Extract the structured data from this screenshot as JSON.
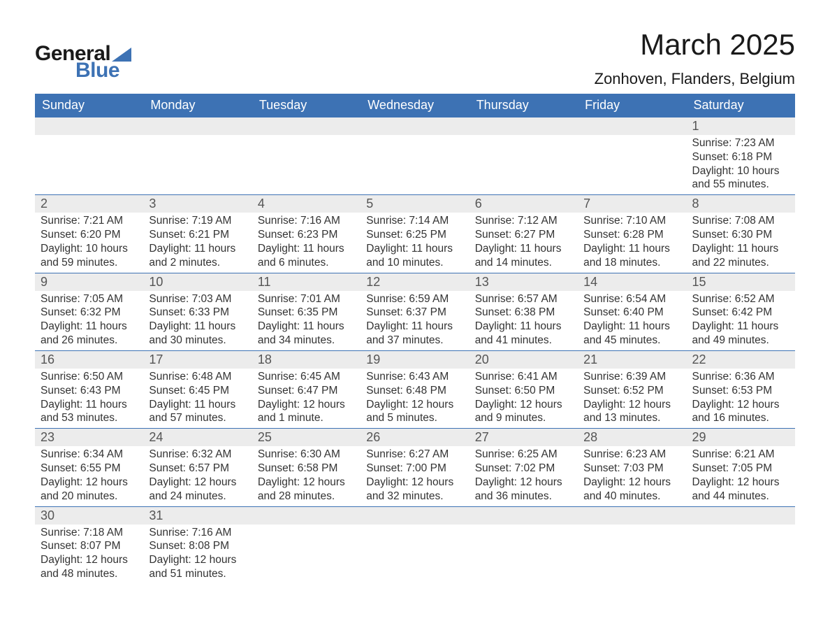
{
  "logo": {
    "general": "General",
    "blue": "Blue"
  },
  "title": "March 2025",
  "location": "Zonhoven, Flanders, Belgium",
  "colors": {
    "header_bg": "#3d72b4",
    "header_fg": "#ffffff",
    "daynum_bg": "#ececec",
    "text": "#333333",
    "page_bg": "#ffffff"
  },
  "weekdays": [
    "Sunday",
    "Monday",
    "Tuesday",
    "Wednesday",
    "Thursday",
    "Friday",
    "Saturday"
  ],
  "weeks": [
    [
      null,
      null,
      null,
      null,
      null,
      null,
      {
        "d": "1",
        "sunrise": "7:23 AM",
        "sunset": "6:18 PM",
        "daylight": "10 hours and 55 minutes."
      }
    ],
    [
      {
        "d": "2",
        "sunrise": "7:21 AM",
        "sunset": "6:20 PM",
        "daylight": "10 hours and 59 minutes."
      },
      {
        "d": "3",
        "sunrise": "7:19 AM",
        "sunset": "6:21 PM",
        "daylight": "11 hours and 2 minutes."
      },
      {
        "d": "4",
        "sunrise": "7:16 AM",
        "sunset": "6:23 PM",
        "daylight": "11 hours and 6 minutes."
      },
      {
        "d": "5",
        "sunrise": "7:14 AM",
        "sunset": "6:25 PM",
        "daylight": "11 hours and 10 minutes."
      },
      {
        "d": "6",
        "sunrise": "7:12 AM",
        "sunset": "6:27 PM",
        "daylight": "11 hours and 14 minutes."
      },
      {
        "d": "7",
        "sunrise": "7:10 AM",
        "sunset": "6:28 PM",
        "daylight": "11 hours and 18 minutes."
      },
      {
        "d": "8",
        "sunrise": "7:08 AM",
        "sunset": "6:30 PM",
        "daylight": "11 hours and 22 minutes."
      }
    ],
    [
      {
        "d": "9",
        "sunrise": "7:05 AM",
        "sunset": "6:32 PM",
        "daylight": "11 hours and 26 minutes."
      },
      {
        "d": "10",
        "sunrise": "7:03 AM",
        "sunset": "6:33 PM",
        "daylight": "11 hours and 30 minutes."
      },
      {
        "d": "11",
        "sunrise": "7:01 AM",
        "sunset": "6:35 PM",
        "daylight": "11 hours and 34 minutes."
      },
      {
        "d": "12",
        "sunrise": "6:59 AM",
        "sunset": "6:37 PM",
        "daylight": "11 hours and 37 minutes."
      },
      {
        "d": "13",
        "sunrise": "6:57 AM",
        "sunset": "6:38 PM",
        "daylight": "11 hours and 41 minutes."
      },
      {
        "d": "14",
        "sunrise": "6:54 AM",
        "sunset": "6:40 PM",
        "daylight": "11 hours and 45 minutes."
      },
      {
        "d": "15",
        "sunrise": "6:52 AM",
        "sunset": "6:42 PM",
        "daylight": "11 hours and 49 minutes."
      }
    ],
    [
      {
        "d": "16",
        "sunrise": "6:50 AM",
        "sunset": "6:43 PM",
        "daylight": "11 hours and 53 minutes."
      },
      {
        "d": "17",
        "sunrise": "6:48 AM",
        "sunset": "6:45 PM",
        "daylight": "11 hours and 57 minutes."
      },
      {
        "d": "18",
        "sunrise": "6:45 AM",
        "sunset": "6:47 PM",
        "daylight": "12 hours and 1 minute."
      },
      {
        "d": "19",
        "sunrise": "6:43 AM",
        "sunset": "6:48 PM",
        "daylight": "12 hours and 5 minutes."
      },
      {
        "d": "20",
        "sunrise": "6:41 AM",
        "sunset": "6:50 PM",
        "daylight": "12 hours and 9 minutes."
      },
      {
        "d": "21",
        "sunrise": "6:39 AM",
        "sunset": "6:52 PM",
        "daylight": "12 hours and 13 minutes."
      },
      {
        "d": "22",
        "sunrise": "6:36 AM",
        "sunset": "6:53 PM",
        "daylight": "12 hours and 16 minutes."
      }
    ],
    [
      {
        "d": "23",
        "sunrise": "6:34 AM",
        "sunset": "6:55 PM",
        "daylight": "12 hours and 20 minutes."
      },
      {
        "d": "24",
        "sunrise": "6:32 AM",
        "sunset": "6:57 PM",
        "daylight": "12 hours and 24 minutes."
      },
      {
        "d": "25",
        "sunrise": "6:30 AM",
        "sunset": "6:58 PM",
        "daylight": "12 hours and 28 minutes."
      },
      {
        "d": "26",
        "sunrise": "6:27 AM",
        "sunset": "7:00 PM",
        "daylight": "12 hours and 32 minutes."
      },
      {
        "d": "27",
        "sunrise": "6:25 AM",
        "sunset": "7:02 PM",
        "daylight": "12 hours and 36 minutes."
      },
      {
        "d": "28",
        "sunrise": "6:23 AM",
        "sunset": "7:03 PM",
        "daylight": "12 hours and 40 minutes."
      },
      {
        "d": "29",
        "sunrise": "6:21 AM",
        "sunset": "7:05 PM",
        "daylight": "12 hours and 44 minutes."
      }
    ],
    [
      {
        "d": "30",
        "sunrise": "7:18 AM",
        "sunset": "8:07 PM",
        "daylight": "12 hours and 48 minutes."
      },
      {
        "d": "31",
        "sunrise": "7:16 AM",
        "sunset": "8:08 PM",
        "daylight": "12 hours and 51 minutes."
      },
      null,
      null,
      null,
      null,
      null
    ]
  ],
  "labels": {
    "sunrise": "Sunrise: ",
    "sunset": "Sunset: ",
    "daylight": "Daylight: "
  }
}
